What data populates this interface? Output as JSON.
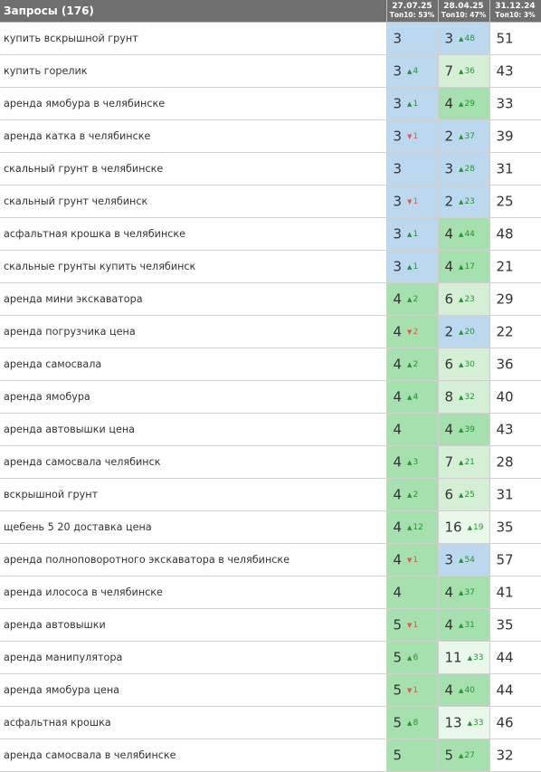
{
  "header": {
    "title": "Запросы (176)",
    "dates": [
      {
        "date": "27.07.25",
        "top": "Топ10: 53%"
      },
      {
        "date": "28.04.25",
        "top": "Топ10: 47%"
      },
      {
        "date": "31.12.24",
        "top": "Топ10: 3%"
      }
    ]
  },
  "rows": [
    {
      "query": "купить вскрышной грунт",
      "p1": "3",
      "c1": "",
      "d1": "",
      "b1": "blue",
      "p2": "3",
      "c2": "48",
      "d2": "up",
      "b2": "blue",
      "p3": "51"
    },
    {
      "query": "купить горелик",
      "p1": "3",
      "c1": "4",
      "d1": "up",
      "b1": "blue",
      "p2": "7",
      "c2": "36",
      "d2": "up",
      "b2": "lgreen",
      "p3": "43"
    },
    {
      "query": "аренда ямобура в челябинске",
      "p1": "3",
      "c1": "1",
      "d1": "up",
      "b1": "blue",
      "p2": "4",
      "c2": "29",
      "d2": "up",
      "b2": "green",
      "p3": "33"
    },
    {
      "query": "аренда катка в челябинске",
      "p1": "3",
      "c1": "1",
      "d1": "down",
      "b1": "blue",
      "p2": "2",
      "c2": "37",
      "d2": "up",
      "b2": "blue",
      "p3": "39"
    },
    {
      "query": "скальный грунт в челябинске",
      "p1": "3",
      "c1": "",
      "d1": "",
      "b1": "blue",
      "p2": "3",
      "c2": "28",
      "d2": "up",
      "b2": "blue",
      "p3": "31"
    },
    {
      "query": "скальный грунт челябинск",
      "p1": "3",
      "c1": "1",
      "d1": "down",
      "b1": "blue",
      "p2": "2",
      "c2": "23",
      "d2": "up",
      "b2": "blue",
      "p3": "25"
    },
    {
      "query": "асфальтная крошка в челябинске",
      "p1": "3",
      "c1": "1",
      "d1": "up",
      "b1": "blue",
      "p2": "4",
      "c2": "44",
      "d2": "up",
      "b2": "green",
      "p3": "48"
    },
    {
      "query": "скальные грунты купить челябинск",
      "p1": "3",
      "c1": "1",
      "d1": "up",
      "b1": "blue",
      "p2": "4",
      "c2": "17",
      "d2": "up",
      "b2": "green",
      "p3": "21"
    },
    {
      "query": "аренда мини экскаватора",
      "p1": "4",
      "c1": "2",
      "d1": "up",
      "b1": "green",
      "p2": "6",
      "c2": "23",
      "d2": "up",
      "b2": "lgreen",
      "p3": "29"
    },
    {
      "query": "аренда погрузчика цена",
      "p1": "4",
      "c1": "2",
      "d1": "down",
      "b1": "green",
      "p2": "2",
      "c2": "20",
      "d2": "up",
      "b2": "blue",
      "p3": "22"
    },
    {
      "query": "аренда самосвала",
      "p1": "4",
      "c1": "2",
      "d1": "up",
      "b1": "green",
      "p2": "6",
      "c2": "30",
      "d2": "up",
      "b2": "lgreen",
      "p3": "36"
    },
    {
      "query": "аренда ямобура",
      "p1": "4",
      "c1": "4",
      "d1": "up",
      "b1": "green",
      "p2": "8",
      "c2": "32",
      "d2": "up",
      "b2": "lgreen",
      "p3": "40"
    },
    {
      "query": "аренда автовышки цена",
      "p1": "4",
      "c1": "",
      "d1": "",
      "b1": "green",
      "p2": "4",
      "c2": "39",
      "d2": "up",
      "b2": "green",
      "p3": "43"
    },
    {
      "query": "аренда самосвала челябинск",
      "p1": "4",
      "c1": "3",
      "d1": "up",
      "b1": "green",
      "p2": "7",
      "c2": "21",
      "d2": "up",
      "b2": "lgreen",
      "p3": "28"
    },
    {
      "query": "вскрышной грунт",
      "p1": "4",
      "c1": "2",
      "d1": "up",
      "b1": "green",
      "p2": "6",
      "c2": "25",
      "d2": "up",
      "b2": "lgreen",
      "p3": "31"
    },
    {
      "query": "щебень 5 20 доставка цена",
      "p1": "4",
      "c1": "12",
      "d1": "up",
      "b1": "green",
      "p2": "16",
      "c2": "19",
      "d2": "up",
      "b2": "xgreen",
      "p3": "35"
    },
    {
      "query": "аренда полноповоротного экскаватора в челябинске",
      "p1": "4",
      "c1": "1",
      "d1": "down",
      "b1": "green",
      "p2": "3",
      "c2": "54",
      "d2": "up",
      "b2": "blue",
      "p3": "57"
    },
    {
      "query": "аренда илососа в челябинске",
      "p1": "4",
      "c1": "",
      "d1": "",
      "b1": "green",
      "p2": "4",
      "c2": "37",
      "d2": "up",
      "b2": "green",
      "p3": "41"
    },
    {
      "query": "аренда автовышки",
      "p1": "5",
      "c1": "1",
      "d1": "down",
      "b1": "green",
      "p2": "4",
      "c2": "31",
      "d2": "up",
      "b2": "green",
      "p3": "35"
    },
    {
      "query": "аренда манипулятора",
      "p1": "5",
      "c1": "6",
      "d1": "up",
      "b1": "green",
      "p2": "11",
      "c2": "33",
      "d2": "up",
      "b2": "xgreen",
      "p3": "44"
    },
    {
      "query": "аренда ямобура цена",
      "p1": "5",
      "c1": "1",
      "d1": "down",
      "b1": "green",
      "p2": "4",
      "c2": "40",
      "d2": "up",
      "b2": "green",
      "p3": "44"
    },
    {
      "query": "асфальтная крошка",
      "p1": "5",
      "c1": "8",
      "d1": "up",
      "b1": "green",
      "p2": "13",
      "c2": "33",
      "d2": "up",
      "b2": "xgreen",
      "p3": "46"
    },
    {
      "query": "аренда самосвала в челябинске",
      "p1": "5",
      "c1": "",
      "d1": "",
      "b1": "green",
      "p2": "5",
      "c2": "27",
      "d2": "up",
      "b2": "green",
      "p3": "32"
    }
  ]
}
